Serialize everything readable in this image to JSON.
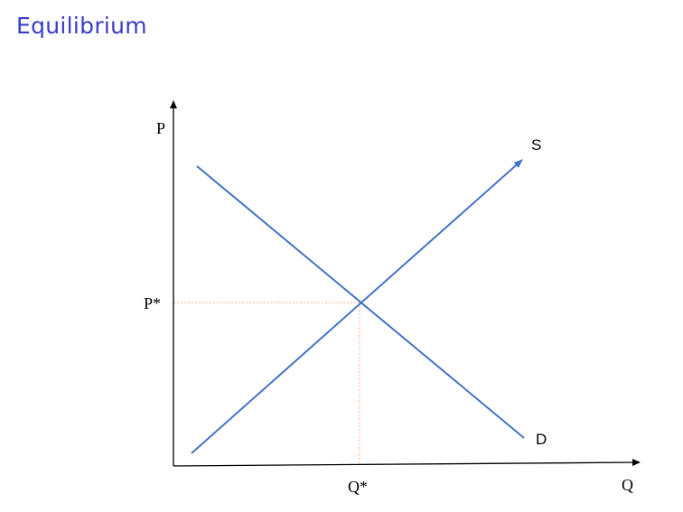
{
  "title": "Equilibrium",
  "diagram": {
    "y_axis_label": "P",
    "x_axis_label": "Q",
    "supply_label": "S",
    "demand_label": "D",
    "equilibrium_price_label": "P*",
    "equilibrium_quantity_label": "Q*"
  },
  "colors": {
    "title": "#3c3cc8",
    "curves": "#4472c4",
    "guides": "#f4b183",
    "axes": "#000000"
  }
}
